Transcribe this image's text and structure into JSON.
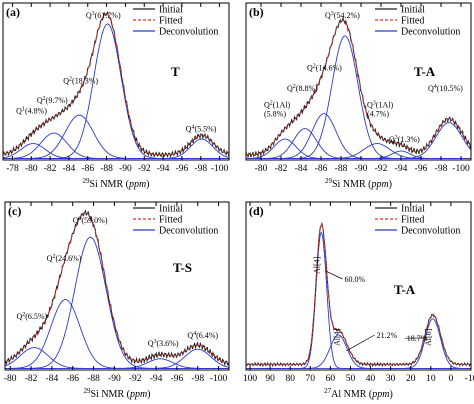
{
  "chart_data": [
    {
      "type": "line",
      "panel_letter": "(a)",
      "sample_label": "T",
      "xlabel": "Si NMR (ppm)",
      "xlabel_sup": "29",
      "xlim": [
        -77,
        -101
      ],
      "ylim": [
        0,
        1.05
      ],
      "x_ticks": [
        "-78",
        "-80",
        "-82",
        "-84",
        "-86",
        "-88",
        "-90",
        "-92",
        "-94",
        "-96",
        "-98",
        "-100"
      ],
      "legend": {
        "position": "top-right",
        "entries": [
          "Initial",
          "Fitted",
          "Deconvolution"
        ]
      },
      "colors": {
        "initial": "#222222",
        "fitted": "#d2332f",
        "deconvolution": "#2a3ad1"
      },
      "noise_amplitude": 0.012,
      "series": [
        {
          "label": "Q1(4.8%)",
          "sup": "1",
          "pre": "Q",
          "post": "(4.8%)",
          "center": -80.2,
          "height": 0.1,
          "width": 1.3,
          "label_x": -78.4,
          "label_y": 0.31
        },
        {
          "label": "Q2(9.7%)",
          "sup": "2",
          "pre": "Q",
          "post": "(9.7%)",
          "center": -82.4,
          "height": 0.17,
          "width": 1.4,
          "label_x": -80.6,
          "label_y": 0.38
        },
        {
          "label": "Q2(18.3%)",
          "sup": "2",
          "pre": "Q",
          "post": "(18.3%)",
          "center": -85.1,
          "height": 0.29,
          "width": 1.5,
          "label_x": -83.4,
          "label_y": 0.51
        },
        {
          "label": "Q3(61.7%)",
          "sup": "3",
          "pre": "Q",
          "post": "(61.7%)",
          "center": -88.1,
          "height": 0.9,
          "width": 1.45,
          "label_x": -85.8,
          "label_y": 0.95
        },
        {
          "label": "Q4(5.5%)",
          "sup": "4",
          "pre": "Q",
          "post": "(5.5%)",
          "center": -98.1,
          "height": 0.13,
          "width": 1.2,
          "label_x": -96.4,
          "label_y": 0.19
        }
      ]
    },
    {
      "type": "line",
      "panel_letter": "(b)",
      "sample_label": "T-A",
      "xlabel": "Si NMR (ppm)",
      "xlabel_sup": "29",
      "xlim": [
        -78.5,
        -101
      ],
      "ylim": [
        0,
        1.05
      ],
      "x_ticks": [
        "-80",
        "-82",
        "-84",
        "-86",
        "-88",
        "-90",
        "-92",
        "-94",
        "-96",
        "-98",
        "-100"
      ],
      "legend": {
        "position": "top-right",
        "entries": [
          "Initial",
          "Fitted",
          "Deconvolution"
        ]
      },
      "colors": {
        "initial": "#222222",
        "fitted": "#d2332f",
        "deconvolution": "#2a3ad1"
      },
      "noise_amplitude": 0.012,
      "series": [
        {
          "label": "Q2(1Al)(5.8%)",
          "sup": "2",
          "pre": "Q",
          "post": "(1Al)",
          "line2": "(5.8%)",
          "center": -82.4,
          "height": 0.13,
          "width": 1.1,
          "label_x": -80.3,
          "label_y": 0.35
        },
        {
          "label": "Q2(8.8%)",
          "sup": "2",
          "pre": "Q",
          "post": "(8.8%)",
          "center": -84.4,
          "height": 0.2,
          "width": 1.15,
          "label_x": -82.6,
          "label_y": 0.46
        },
        {
          "label": "Q2(14.6%)",
          "sup": "2",
          "pre": "Q",
          "post": "(14.6%)",
          "center": -86.3,
          "height": 0.3,
          "width": 1.2,
          "label_x": -84.6,
          "label_y": 0.6
        },
        {
          "label": "Q3(54.2%)",
          "sup": "3",
          "pre": "Q",
          "post": "(54.2%)",
          "center": -88.4,
          "height": 0.82,
          "width": 1.3,
          "label_x": -86.4,
          "label_y": 0.95
        },
        {
          "label": "Q3(1Al)(4.7%)",
          "sup": "3",
          "pre": "Q",
          "post": "(1Al)",
          "line2": "(4.7%)",
          "center": -91.6,
          "height": 0.1,
          "width": 1.3,
          "label_x": -90.6,
          "label_y": 0.35
        },
        {
          "label": "Q3(1.3%)",
          "sup": "3",
          "pre": "Q",
          "post": "(1.3%)",
          "center": -94.0,
          "height": 0.05,
          "width": 0.9,
          "label_x": -92.8,
          "label_y": 0.12
        },
        {
          "label": "Q4(10.5%)",
          "sup": "4",
          "pre": "Q",
          "post": "(10.5%)",
          "center": -98.8,
          "height": 0.24,
          "width": 1.3,
          "label_x": -96.7,
          "label_y": 0.46
        }
      ]
    },
    {
      "type": "line",
      "panel_letter": "(c)",
      "sample_label": "T-S",
      "xlabel": "Si NMR (ppm)",
      "xlabel_sup": "29",
      "xlim": [
        -79.5,
        -101
      ],
      "ylim": [
        0,
        1.05
      ],
      "x_ticks": [
        "-80",
        "-82",
        "-84",
        "-86",
        "-88",
        "-90",
        "-92",
        "-94",
        "-96",
        "-98",
        "-100"
      ],
      "legend": {
        "position": "top-right",
        "entries": [
          "Initial",
          "Fitted",
          "Deconvolution"
        ]
      },
      "colors": {
        "initial": "#222222",
        "fitted": "#d2332f",
        "deconvolution": "#2a3ad1"
      },
      "noise_amplitude": 0.012,
      "series": [
        {
          "label": "Q2(6.5%)",
          "sup": "2",
          "pre": "Q",
          "post": "(6.5%)",
          "center": -82.3,
          "height": 0.13,
          "width": 1.35,
          "label_x": -80.6,
          "label_y": 0.32
        },
        {
          "label": "Q2(24.6%)",
          "sup": "2",
          "pre": "Q",
          "post": "(24.6%)",
          "center": -85.3,
          "height": 0.43,
          "width": 1.4,
          "label_x": -83.5,
          "label_y": 0.68
        },
        {
          "label": "Q3(59.0%)",
          "sup": "3",
          "pre": "Q",
          "post": "(59.0%)",
          "center": -87.7,
          "height": 0.82,
          "width": 1.5,
          "label_x": -86.0,
          "label_y": 0.92
        },
        {
          "label": "Q3(3.6%)",
          "sup": "3",
          "pre": "Q",
          "post": "(3.6%)",
          "center": -94.4,
          "height": 0.06,
          "width": 1.2,
          "label_x": -93.2,
          "label_y": 0.15
        },
        {
          "label": "Q4(6.4%)",
          "sup": "4",
          "pre": "Q",
          "post": "(6.4%)",
          "center": -98.0,
          "height": 0.12,
          "width": 1.25,
          "label_x": -97.0,
          "label_y": 0.2
        }
      ]
    },
    {
      "type": "line",
      "panel_letter": "(d)",
      "sample_label": "T-A",
      "xlabel": "Al NMR (ppm)",
      "xlabel_sup": "27",
      "xlim": [
        102,
        -10
      ],
      "ylim": [
        0,
        1.05
      ],
      "x_ticks": [
        "100",
        "90",
        "80",
        "70",
        "60",
        "50",
        "40",
        "30",
        "20",
        "10",
        "0",
        "-10"
      ],
      "legend": {
        "position": "top-right",
        "entries": [
          "Initial",
          "Fitted",
          "Deconvolution"
        ]
      },
      "colors": {
        "initial": "#222222",
        "fitted": "#d2332f",
        "deconvolution": "#2a3ad1"
      },
      "noise_amplitude": 0.006,
      "series": [
        {
          "label": "Al[4] 60.0%",
          "center": 64.5,
          "height": 0.85,
          "width": 2.6
        },
        {
          "label": "Al[4] 21.2%",
          "center": 56.0,
          "height": 0.21,
          "width": 4.2
        },
        {
          "label": "Al[6] 18.7%",
          "center": 9.0,
          "height": 0.31,
          "width": 3.8
        }
      ],
      "peak_labels": [
        {
          "text": "Al[4]",
          "x": 65.5,
          "y": 0.6,
          "vertical": true
        },
        {
          "text": "Al[4]",
          "x": 55.5,
          "y": 0.15,
          "vertical": true
        },
        {
          "text": "Al[6]",
          "x": 10.0,
          "y": 0.15,
          "vertical": true
        }
      ],
      "annotations": [
        {
          "text": "60.0%",
          "x": 53,
          "y": 0.55,
          "arrow_to": [
            62.5,
            0.62
          ]
        },
        {
          "text": "21.2%",
          "x": 37,
          "y": 0.2,
          "arrow_to": [
            52,
            0.12
          ]
        },
        {
          "text": "18.7%",
          "x": 22,
          "y": 0.18,
          "arrow_to": [
            12,
            0.2
          ]
        }
      ]
    }
  ]
}
